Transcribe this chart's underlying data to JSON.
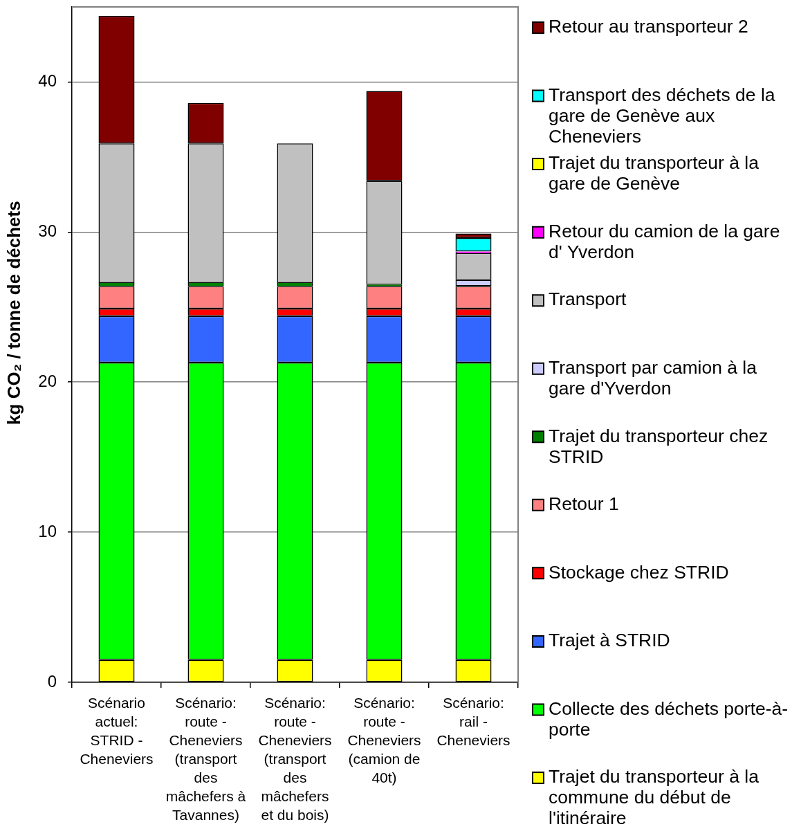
{
  "chart_data": {
    "type": "bar",
    "stacked": true,
    "ylabel": "kg CO₂ / tonne de déchets",
    "categories": [
      "Scénario actuel: STRID - Cheneviers",
      "Scénario: route - Cheneviers (transport des mâchefers à Tavannes)",
      "Scénario: route - Cheneviers (transport des mâchefers et du bois)",
      "Scénario: route - Cheneviers (camion de 40t)",
      "Scénario: rail - Cheneviers"
    ],
    "series": [
      {
        "name": "Trajet du transporteur à la commune du début de l'itinéraire",
        "color": "#ffff00",
        "values": [
          1.5,
          1.5,
          1.5,
          1.5,
          1.5
        ]
      },
      {
        "name": "Collecte des déchets porte-à-porte",
        "color": "#00ff00",
        "values": [
          19.8,
          19.8,
          19.8,
          19.8,
          19.8
        ]
      },
      {
        "name": "Trajet à STRID",
        "color": "#3366ff",
        "values": [
          3.1,
          3.1,
          3.1,
          3.1,
          3.1
        ]
      },
      {
        "name": "Stockage chez STRID",
        "color": "#ff0000",
        "values": [
          0.5,
          0.5,
          0.5,
          0.5,
          0.5
        ]
      },
      {
        "name": "Retour 1",
        "color": "#ff8080",
        "values": [
          1.5,
          1.5,
          1.5,
          1.5,
          1.5
        ]
      },
      {
        "name": "Trajet du transporteur chez STRID",
        "color": "#008000",
        "values": [
          0.2,
          0.2,
          0.2,
          0.1,
          null
        ]
      },
      {
        "name": "Transport par camion à la gare d'Yverdon",
        "color": "#ccccff",
        "values": [
          null,
          null,
          null,
          null,
          0.4
        ]
      },
      {
        "name": "Transport",
        "color": "#c0c0c0",
        "values": [
          9.3,
          9.3,
          9.3,
          6.9,
          1.8
        ]
      },
      {
        "name": "Retour du camion de la gare d' Yverdon",
        "color": "#ff00ff",
        "values": [
          null,
          null,
          null,
          null,
          0.1
        ]
      },
      {
        "name": "Trajet du transporteur à la gare de Genève",
        "color": "#ffff00",
        "values": [
          null,
          null,
          null,
          null,
          null
        ]
      },
      {
        "name": "Transport des déchets de la gare de Genève aux Cheneviers",
        "color": "#00ffff",
        "values": [
          null,
          null,
          null,
          null,
          0.9
        ]
      },
      {
        "name": "Retour au transporteur 2",
        "color": "#800000",
        "values": [
          8.5,
          2.7,
          null,
          6.0,
          0.3
        ]
      }
    ],
    "ylim": [
      0,
      45
    ],
    "yticks": [
      0,
      10,
      20,
      30,
      40
    ],
    "grid": "y",
    "legend": "right"
  }
}
